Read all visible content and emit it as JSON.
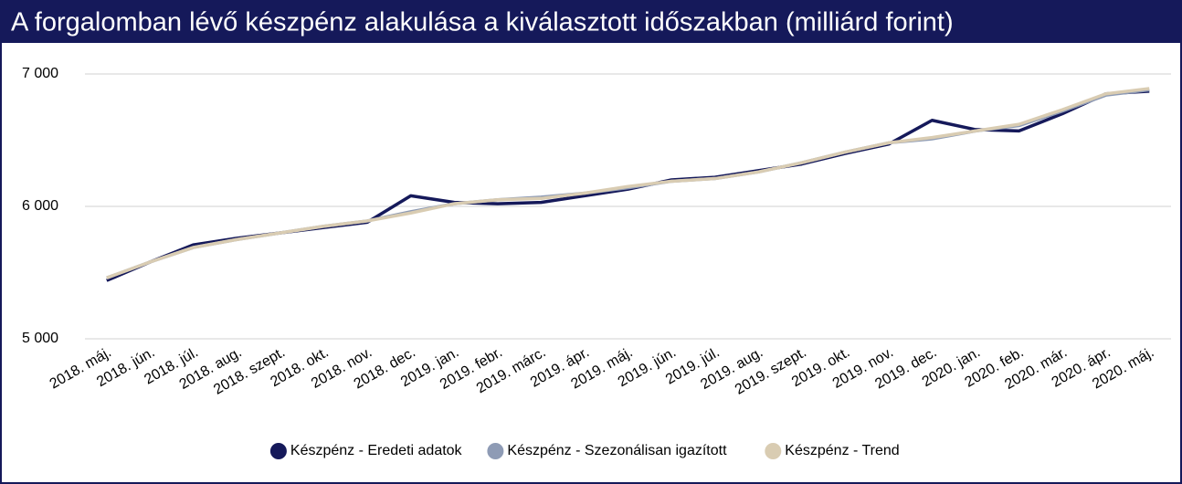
{
  "chart_data": {
    "type": "line",
    "title": "A forgalomban lévő készpénz alakulása a kiválasztott időszakban (milliárd forint)",
    "categories": [
      "2018. máj.",
      "2018. jún.",
      "2018. júl.",
      "2018. aug.",
      "2018. szept.",
      "2018. okt.",
      "2018. nov.",
      "2018. dec.",
      "2019. jan.",
      "2019. febr.",
      "2019. márc.",
      "2019. ápr.",
      "2019. máj.",
      "2019. jún.",
      "2019. júl.",
      "2019. aug.",
      "2019. szept.",
      "2019. okt.",
      "2019. nov.",
      "2019. dec.",
      "2020. jan.",
      "2020. feb.",
      "2020. már.",
      "2020. ápr.",
      "2020. máj."
    ],
    "series": [
      {
        "name": "Készpénz - Eredeti adatok",
        "color": "#15195a",
        "values": [
          5440,
          5580,
          5710,
          5760,
          5800,
          5840,
          5880,
          6080,
          6030,
          6020,
          6030,
          6080,
          6130,
          6200,
          6220,
          6270,
          6320,
          6400,
          6470,
          6650,
          6580,
          6570,
          6700,
          6850,
          6870
        ]
      },
      {
        "name": "Készpénz - Szezonálisan igazított",
        "color": "#8e9bb5",
        "values": [
          5460,
          5580,
          5690,
          5750,
          5800,
          5850,
          5890,
          5960,
          6020,
          6050,
          6070,
          6100,
          6140,
          6190,
          6210,
          6260,
          6330,
          6410,
          6480,
          6510,
          6570,
          6610,
          6720,
          6840,
          6880
        ]
      },
      {
        "name": "Készpénz - Trend",
        "color": "#d9ccb2",
        "values": [
          5460,
          5580,
          5690,
          5750,
          5800,
          5850,
          5890,
          5950,
          6020,
          6050,
          6060,
          6100,
          6150,
          6190,
          6210,
          6260,
          6330,
          6410,
          6480,
          6520,
          6570,
          6620,
          6730,
          6850,
          6890
        ]
      }
    ],
    "ylim": [
      5000,
      7000
    ],
    "yticks": [
      {
        "value": 5000,
        "label": "5 000"
      },
      {
        "value": 6000,
        "label": "6 000"
      },
      {
        "value": 7000,
        "label": "7 000"
      }
    ],
    "grid": true,
    "legend": "bottom"
  }
}
